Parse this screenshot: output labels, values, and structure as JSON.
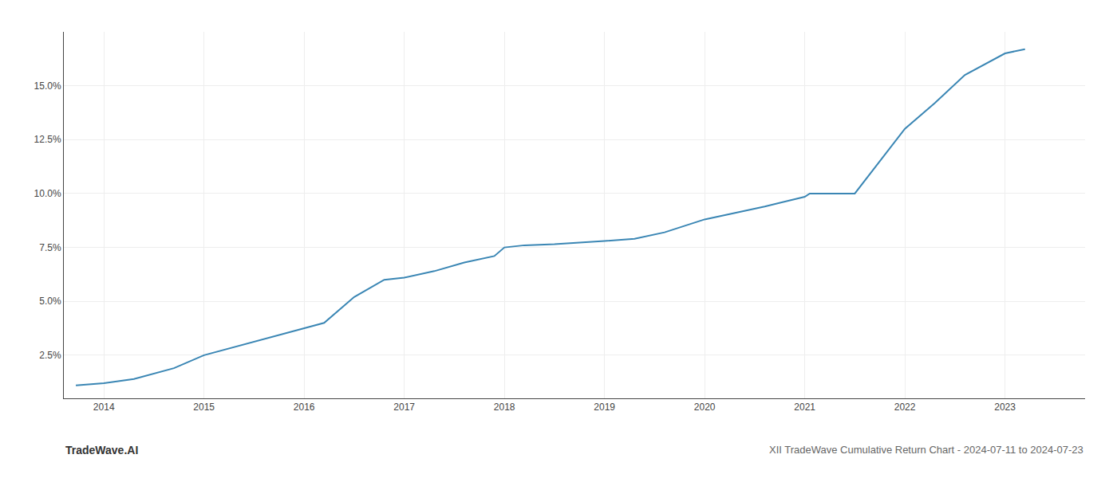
{
  "chart_data": {
    "type": "line",
    "x": [
      2013.72,
      2014.0,
      2014.3,
      2014.7,
      2015.0,
      2015.4,
      2015.8,
      2016.2,
      2016.5,
      2016.8,
      2017.0,
      2017.3,
      2017.6,
      2017.9,
      2018.0,
      2018.2,
      2018.5,
      2018.7,
      2019.0,
      2019.3,
      2019.6,
      2020.0,
      2020.3,
      2020.6,
      2021.0,
      2021.05,
      2021.5,
      2022.0,
      2022.3,
      2022.6,
      2023.0,
      2023.2
    ],
    "values": [
      1.1,
      1.2,
      1.4,
      1.9,
      2.5,
      3.0,
      3.5,
      4.0,
      5.2,
      6.0,
      6.1,
      6.4,
      6.8,
      7.1,
      7.5,
      7.6,
      7.65,
      7.7,
      7.8,
      7.9,
      8.2,
      8.8,
      9.1,
      9.4,
      9.85,
      10.0,
      10.0,
      13.0,
      14.2,
      15.5,
      16.5,
      16.7
    ],
    "color": "#3a86b4",
    "xlim": [
      2013.6,
      2023.8
    ],
    "xticks": [
      2014,
      2015,
      2016,
      2017,
      2018,
      2019,
      2020,
      2021,
      2022,
      2023
    ],
    "ylim": [
      0.5,
      17.5
    ],
    "yticks": [
      {
        "value": 2.5,
        "label": "2.5%"
      },
      {
        "value": 5.0,
        "label": "5.0%"
      },
      {
        "value": 7.5,
        "label": "7.5%"
      },
      {
        "value": 10.0,
        "label": "10.0%"
      },
      {
        "value": 12.5,
        "label": "12.5%"
      },
      {
        "value": 15.0,
        "label": "15.0%"
      }
    ],
    "grid": true,
    "annotations": [
      "TradeWave.AI",
      "XII TradeWave Cumulative Return Chart - 2024-07-11 to 2024-07-23"
    ]
  }
}
